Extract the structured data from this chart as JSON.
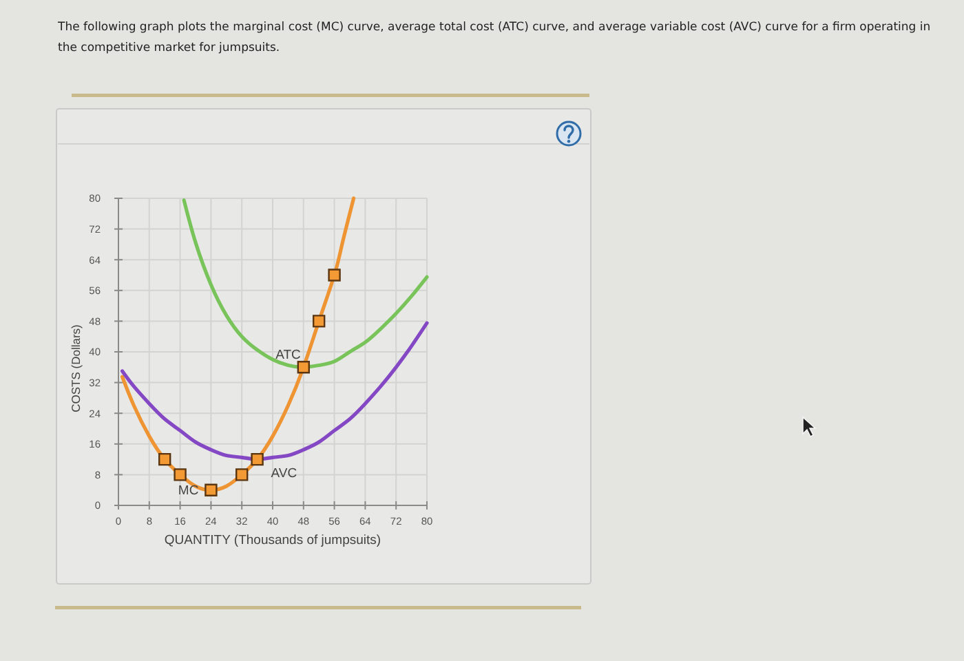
{
  "chart_data": {
    "type": "line",
    "title": "The following graph plots the marginal cost (MC) curve, average total cost (ATC) curve, and average variable cost (AVC) curve for a firm operating in the competitive market for jumpsuits.",
    "xlabel": "QUANTITY (Thousands of jumpsuits)",
    "ylabel": "COSTS (Dollars)",
    "xlim": [
      0,
      80
    ],
    "ylim": [
      0,
      80
    ],
    "xticks": [
      0,
      8,
      16,
      24,
      32,
      40,
      48,
      56,
      64,
      72,
      80
    ],
    "yticks": [
      0,
      8,
      16,
      24,
      32,
      40,
      48,
      56,
      64,
      72,
      80
    ],
    "grid": true,
    "legend": false,
    "series": [
      {
        "name": "MC",
        "color": "#ef9433",
        "x": [
          1,
          4,
          8,
          12,
          16,
          20,
          24,
          28,
          32,
          36,
          40,
          44,
          48,
          52,
          56,
          58,
          61
        ],
        "values": [
          33.5,
          26,
          18,
          12,
          8,
          5,
          4,
          5,
          8,
          12,
          18,
          26,
          36,
          48,
          60,
          68,
          80
        ]
      },
      {
        "name": "ATC",
        "color": "#79c45a",
        "x": [
          17,
          20,
          24,
          28,
          32,
          36,
          40,
          44,
          48,
          52,
          56,
          60,
          64,
          68,
          72,
          76,
          80
        ],
        "values": [
          79.5,
          68.5,
          57.5,
          49.5,
          44,
          40.5,
          38,
          36.5,
          36,
          36.5,
          37.5,
          40,
          42.5,
          46,
          50,
          54.5,
          59.5
        ]
      },
      {
        "name": "AVC",
        "color": "#8548c4",
        "x": [
          1,
          4,
          8,
          12,
          16,
          20,
          24,
          28,
          32,
          36,
          40,
          44,
          48,
          52,
          56,
          60,
          64,
          68,
          72,
          76,
          80
        ],
        "values": [
          35,
          31,
          26.5,
          22.5,
          19.5,
          16.5,
          14.5,
          13,
          12.5,
          12,
          12.5,
          13,
          14.5,
          16.5,
          19.5,
          22.5,
          26.5,
          31,
          36,
          41.5,
          47.5
        ]
      },
      {
        "type": "scatter",
        "marker": "square",
        "color": "#f49a34",
        "x": [
          12,
          16,
          24,
          32,
          36,
          48,
          52,
          56
        ],
        "values": [
          12,
          8,
          4,
          8,
          12,
          36,
          48,
          60
        ]
      }
    ]
  }
}
